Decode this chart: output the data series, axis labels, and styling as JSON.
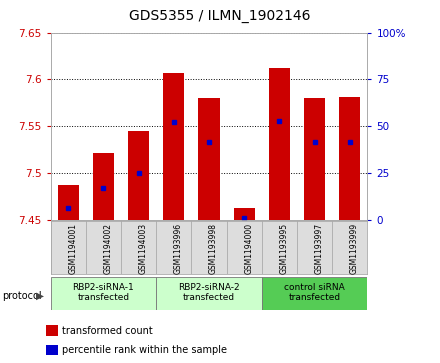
{
  "title": "GDS5355 / ILMN_1902146",
  "samples": [
    "GSM1194001",
    "GSM1194002",
    "GSM1194003",
    "GSM1193996",
    "GSM1193998",
    "GSM1194000",
    "GSM1193995",
    "GSM1193997",
    "GSM1193999"
  ],
  "bar_bottoms": [
    7.45,
    7.45,
    7.45,
    7.45,
    7.45,
    7.45,
    7.45,
    7.45,
    7.45
  ],
  "bar_tops": [
    7.487,
    7.521,
    7.545,
    7.607,
    7.58,
    7.462,
    7.612,
    7.58,
    7.581
  ],
  "percentile_values": [
    7.462,
    7.484,
    7.5,
    7.554,
    7.533,
    7.452,
    7.556,
    7.533,
    7.533
  ],
  "ylim": [
    7.45,
    7.65
  ],
  "yticks": [
    7.45,
    7.5,
    7.55,
    7.6,
    7.65
  ],
  "y2lim": [
    0,
    100
  ],
  "y2ticks": [
    0,
    25,
    50,
    75,
    100
  ],
  "bar_color": "#cc0000",
  "percentile_color": "#0000cc",
  "grid_color": "#000000",
  "left_tick_color": "#cc0000",
  "right_tick_color": "#0000cc",
  "protocol_groups": [
    {
      "label": "RBP2-siRNA-1\ntransfected",
      "start": 0,
      "end": 3,
      "color": "#ccffcc"
    },
    {
      "label": "RBP2-siRNA-2\ntransfected",
      "start": 3,
      "end": 6,
      "color": "#ccffcc"
    },
    {
      "label": "control siRNA\ntransfected",
      "start": 6,
      "end": 9,
      "color": "#55cc55"
    }
  ],
  "protocol_label": "protocol",
  "legend_items": [
    {
      "color": "#cc0000",
      "label": "transformed count"
    },
    {
      "color": "#0000cc",
      "label": "percentile rank within the sample"
    }
  ],
  "bg_color": "#dddddd",
  "plot_bg_color": "#ffffff",
  "fig_bg_color": "#ffffff"
}
